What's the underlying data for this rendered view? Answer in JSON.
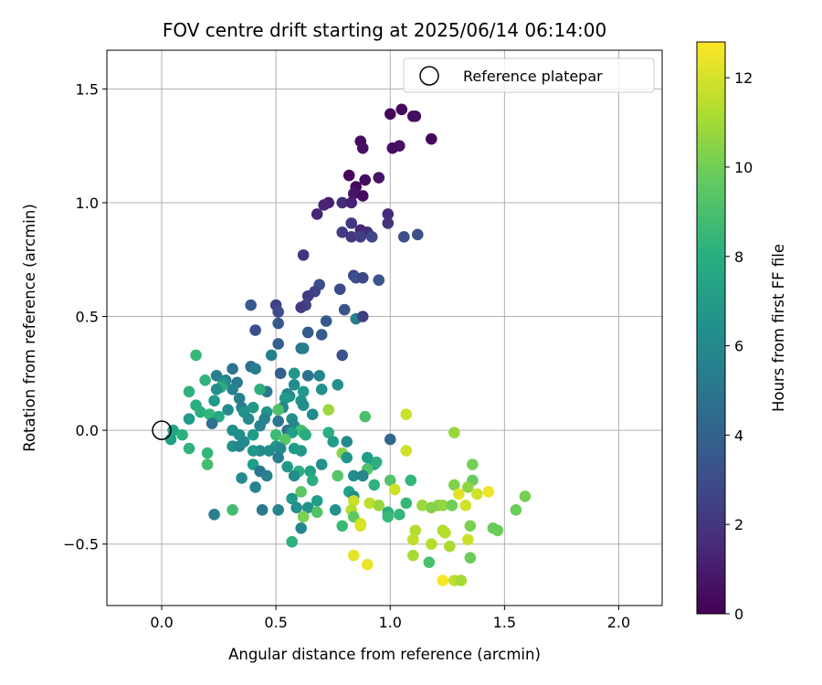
{
  "chart_data": {
    "type": "scatter",
    "title": "FOV centre drift starting at 2025/06/14 06:14:00",
    "xlabel": "Angular distance from reference (arcmin)",
    "ylabel": "Rotation from reference (arcmin)",
    "xlim": [
      -0.24,
      2.19
    ],
    "ylim": [
      -0.77,
      1.67
    ],
    "xticks": [
      "0.0",
      "0.5",
      "1.0",
      "1.5",
      "2.0"
    ],
    "yticks": [
      "−0.5",
      "0.0",
      "0.5",
      "1.0",
      "1.5"
    ],
    "xtick_values": [
      0.0,
      0.5,
      1.0,
      1.5,
      2.0
    ],
    "ytick_values": [
      -0.5,
      0.0,
      0.5,
      1.0,
      1.5
    ],
    "grid": true,
    "legend": {
      "placement": "top-right",
      "entries": [
        "Reference platepar"
      ]
    },
    "reference_point": {
      "x": 0.0,
      "y": 0.0,
      "name": "Reference platepar"
    },
    "colorbar": {
      "label": "Hours from first FF file",
      "colormap": "viridis",
      "range": [
        0,
        12.8
      ],
      "ticks": [
        "0",
        "2",
        "4",
        "6",
        "8",
        "10",
        "12"
      ],
      "tick_values": [
        0,
        2,
        4,
        6,
        8,
        10,
        12
      ]
    },
    "points": [
      [
        1.0,
        1.39,
        0.2
      ],
      [
        1.05,
        1.41,
        0.3
      ],
      [
        1.1,
        1.38,
        0.4
      ],
      [
        1.11,
        1.38,
        0.5
      ],
      [
        1.18,
        1.28,
        0.3
      ],
      [
        1.01,
        1.24,
        0.5
      ],
      [
        1.04,
        1.25,
        0.6
      ],
      [
        0.87,
        1.27,
        0.4
      ],
      [
        0.88,
        1.24,
        0.6
      ],
      [
        0.82,
        1.12,
        0.2
      ],
      [
        0.89,
        1.1,
        0.5
      ],
      [
        0.95,
        1.11,
        0.7
      ],
      [
        0.85,
        1.07,
        0.3
      ],
      [
        0.84,
        1.04,
        0.8
      ],
      [
        0.88,
        1.03,
        0.4
      ],
      [
        0.73,
        1.0,
        1.1
      ],
      [
        0.71,
        0.99,
        1.3
      ],
      [
        0.79,
        1.0,
        1.6
      ],
      [
        0.83,
        1.0,
        1.2
      ],
      [
        0.68,
        0.95,
        1.3
      ],
      [
        0.99,
        0.95,
        1.5
      ],
      [
        0.99,
        0.91,
        1.9
      ],
      [
        0.83,
        0.91,
        2.1
      ],
      [
        0.87,
        0.88,
        1.4
      ],
      [
        0.9,
        0.87,
        1.6
      ],
      [
        0.79,
        0.87,
        2.3
      ],
      [
        0.83,
        0.85,
        2.0
      ],
      [
        0.87,
        0.85,
        2.4
      ],
      [
        0.92,
        0.85,
        2.7
      ],
      [
        1.06,
        0.85,
        3.1
      ],
      [
        1.12,
        0.86,
        3.3
      ],
      [
        0.62,
        0.77,
        1.9
      ],
      [
        0.84,
        0.68,
        2.8
      ],
      [
        0.85,
        0.67,
        3.1
      ],
      [
        0.88,
        0.67,
        2.7
      ],
      [
        0.95,
        0.66,
        3.4
      ],
      [
        0.69,
        0.64,
        3.1
      ],
      [
        0.67,
        0.61,
        2.6
      ],
      [
        0.78,
        0.62,
        2.9
      ],
      [
        0.64,
        0.59,
        2.3
      ],
      [
        0.63,
        0.55,
        2.7
      ],
      [
        0.61,
        0.54,
        2.2
      ],
      [
        0.5,
        0.55,
        2.5
      ],
      [
        0.39,
        0.55,
        3.6
      ],
      [
        0.51,
        0.52,
        3.0
      ],
      [
        0.8,
        0.53,
        3.3
      ],
      [
        0.85,
        0.49,
        5.5
      ],
      [
        0.88,
        0.5,
        2.4
      ],
      [
        0.72,
        0.48,
        3.6
      ],
      [
        0.51,
        0.47,
        3.6
      ],
      [
        0.41,
        0.44,
        3.1
      ],
      [
        0.64,
        0.43,
        3.7
      ],
      [
        0.7,
        0.42,
        3.7
      ],
      [
        0.51,
        0.38,
        3.9
      ],
      [
        0.61,
        0.36,
        4.9
      ],
      [
        0.62,
        0.36,
        5.3
      ],
      [
        0.79,
        0.33,
        3.3
      ],
      [
        0.48,
        0.33,
        5.6
      ],
      [
        0.15,
        0.33,
        8.6
      ],
      [
        0.39,
        0.28,
        4.7
      ],
      [
        0.41,
        0.27,
        5.4
      ],
      [
        0.31,
        0.27,
        4.9
      ],
      [
        0.52,
        0.25,
        3.9
      ],
      [
        0.58,
        0.25,
        6.7
      ],
      [
        0.69,
        0.24,
        5.8
      ],
      [
        0.64,
        0.24,
        4.8
      ],
      [
        0.24,
        0.24,
        5.4
      ],
      [
        0.28,
        0.22,
        5.6
      ],
      [
        0.27,
        0.21,
        6.4
      ],
      [
        0.19,
        0.22,
        8.3
      ],
      [
        0.33,
        0.21,
        5.2
      ],
      [
        0.58,
        0.2,
        6.2
      ],
      [
        0.77,
        0.2,
        6.3
      ],
      [
        0.26,
        0.19,
        7.9
      ],
      [
        0.24,
        0.18,
        6.4
      ],
      [
        0.7,
        0.18,
        6.4
      ],
      [
        0.31,
        0.18,
        5.7
      ],
      [
        0.46,
        0.17,
        5.2
      ],
      [
        0.43,
        0.18,
        8.1
      ],
      [
        0.62,
        0.17,
        6.9
      ],
      [
        0.55,
        0.16,
        5.7
      ],
      [
        0.56,
        0.15,
        6.3
      ],
      [
        0.54,
        0.14,
        6.9
      ],
      [
        0.12,
        0.17,
        8.2
      ],
      [
        0.23,
        0.13,
        6.9
      ],
      [
        0.34,
        0.14,
        5.6
      ],
      [
        0.61,
        0.13,
        6.7
      ],
      [
        0.62,
        0.11,
        6.3
      ],
      [
        0.4,
        0.1,
        6.8
      ],
      [
        0.35,
        0.1,
        5.4
      ],
      [
        0.53,
        0.1,
        6.0
      ],
      [
        0.15,
        0.11,
        7.9
      ],
      [
        0.29,
        0.09,
        6.1
      ],
      [
        0.17,
        0.08,
        8.0
      ],
      [
        0.36,
        0.08,
        6.5
      ],
      [
        0.46,
        0.08,
        6.6
      ],
      [
        0.51,
        0.09,
        9.2
      ],
      [
        0.21,
        0.07,
        8.5
      ],
      [
        0.25,
        0.06,
        7.6
      ],
      [
        0.66,
        0.07,
        6.2
      ],
      [
        0.73,
        0.09,
        10.9
      ],
      [
        0.12,
        0.05,
        6.9
      ],
      [
        0.38,
        0.05,
        6.1
      ],
      [
        0.45,
        0.05,
        5.7
      ],
      [
        0.57,
        0.05,
        6.3
      ],
      [
        0.51,
        0.04,
        5.0
      ],
      [
        0.22,
        0.03,
        4.7
      ],
      [
        0.43,
        0.02,
        5.7
      ],
      [
        0.58,
        0.02,
        5.9
      ],
      [
        0.55,
        0.0,
        4.7
      ],
      [
        0.61,
        0.0,
        9.1
      ],
      [
        0.31,
        0.0,
        6.3
      ],
      [
        0.73,
        -0.01,
        8.0
      ],
      [
        0.57,
        -0.01,
        7.2
      ],
      [
        0.05,
        0.0,
        7.4
      ],
      [
        0.09,
        -0.02,
        8.1
      ],
      [
        0.34,
        -0.02,
        6.2
      ],
      [
        0.4,
        -0.02,
        7.0
      ],
      [
        0.89,
        0.06,
        9.1
      ],
      [
        1.07,
        0.07,
        11.8
      ],
      [
        0.62,
        -0.01,
        8.8
      ],
      [
        0.63,
        -0.02,
        7.8
      ],
      [
        0.5,
        -0.02,
        8.7
      ],
      [
        0.04,
        -0.04,
        7.3
      ],
      [
        0.54,
        -0.04,
        9.4
      ],
      [
        0.75,
        -0.05,
        7.1
      ],
      [
        0.81,
        -0.05,
        6.0
      ],
      [
        1.0,
        -0.04,
        4.2
      ],
      [
        1.28,
        -0.01,
        10.8
      ],
      [
        0.36,
        -0.05,
        6.1
      ],
      [
        0.31,
        -0.07,
        6.4
      ],
      [
        0.34,
        -0.07,
        5.9
      ],
      [
        0.5,
        -0.07,
        6.8
      ],
      [
        0.12,
        -0.08,
        8.2
      ],
      [
        0.43,
        -0.09,
        6.2
      ],
      [
        0.47,
        -0.09,
        6.2
      ],
      [
        0.52,
        -0.08,
        6.0
      ],
      [
        0.58,
        -0.08,
        6.9
      ],
      [
        0.61,
        -0.09,
        6.8
      ],
      [
        0.4,
        -0.09,
        6.8
      ],
      [
        0.2,
        -0.1,
        8.4
      ],
      [
        0.79,
        -0.1,
        10.5
      ],
      [
        0.81,
        -0.12,
        6.6
      ],
      [
        1.07,
        -0.09,
        11.9
      ],
      [
        0.9,
        -0.12,
        7.1
      ],
      [
        0.51,
        -0.12,
        5.4
      ],
      [
        0.2,
        -0.15,
        8.9
      ],
      [
        0.4,
        -0.15,
        7.1
      ],
      [
        0.55,
        -0.16,
        6.8
      ],
      [
        0.7,
        -0.15,
        6.4
      ],
      [
        0.93,
        -0.15,
        7.3
      ],
      [
        0.94,
        -0.14,
        8.0
      ],
      [
        1.36,
        -0.15,
        10.1
      ],
      [
        0.9,
        -0.17,
        9.2
      ],
      [
        0.6,
        -0.18,
        8.0
      ],
      [
        0.43,
        -0.18,
        5.1
      ],
      [
        0.65,
        -0.18,
        7.4
      ],
      [
        0.58,
        -0.2,
        6.3
      ],
      [
        0.46,
        -0.2,
        5.6
      ],
      [
        0.35,
        -0.21,
        6.1
      ],
      [
        0.84,
        -0.2,
        6.2
      ],
      [
        0.88,
        -0.2,
        5.9
      ],
      [
        0.77,
        -0.2,
        9.4
      ],
      [
        0.66,
        -0.22,
        7.9
      ],
      [
        1.0,
        -0.22,
        9.3
      ],
      [
        1.09,
        -0.22,
        8.4
      ],
      [
        1.28,
        -0.24,
        10.3
      ],
      [
        1.36,
        -0.22,
        9.8
      ],
      [
        1.34,
        -0.25,
        10.6
      ],
      [
        0.93,
        -0.24,
        8.2
      ],
      [
        0.41,
        -0.25,
        5.8
      ],
      [
        0.61,
        -0.27,
        9.6
      ],
      [
        0.82,
        -0.27,
        7.4
      ],
      [
        0.84,
        -0.29,
        6.2
      ],
      [
        1.02,
        -0.26,
        11.9
      ],
      [
        1.3,
        -0.28,
        12.3
      ],
      [
        1.38,
        -0.28,
        11.9
      ],
      [
        1.43,
        -0.27,
        12.5
      ],
      [
        1.59,
        -0.29,
        10.1
      ],
      [
        0.57,
        -0.3,
        6.8
      ],
      [
        0.68,
        -0.31,
        7.2
      ],
      [
        0.84,
        -0.31,
        11.8
      ],
      [
        0.91,
        -0.32,
        11.6
      ],
      [
        0.95,
        -0.33,
        10.8
      ],
      [
        1.07,
        -0.32,
        8.5
      ],
      [
        1.14,
        -0.33,
        10.9
      ],
      [
        1.21,
        -0.33,
        10.5
      ],
      [
        1.18,
        -0.34,
        10.4
      ],
      [
        1.23,
        -0.33,
        10.7
      ],
      [
        1.27,
        -0.33,
        10.0
      ],
      [
        1.33,
        -0.33,
        12.0
      ],
      [
        1.55,
        -0.35,
        9.9
      ],
      [
        0.44,
        -0.35,
        5.2
      ],
      [
        0.51,
        -0.35,
        5.8
      ],
      [
        0.59,
        -0.34,
        6.3
      ],
      [
        0.64,
        -0.34,
        6.5
      ],
      [
        0.76,
        -0.35,
        6.6
      ],
      [
        0.68,
        -0.36,
        9.3
      ],
      [
        0.31,
        -0.35,
        8.9
      ],
      [
        0.83,
        -0.35,
        11.4
      ],
      [
        0.99,
        -0.36,
        8.0
      ],
      [
        1.04,
        -0.37,
        8.4
      ],
      [
        0.99,
        -0.38,
        8.6
      ],
      [
        0.23,
        -0.37,
        5.6
      ],
      [
        0.62,
        -0.38,
        10.2
      ],
      [
        0.84,
        -0.38,
        9.6
      ],
      [
        0.87,
        -0.41,
        11.9
      ],
      [
        0.87,
        -0.42,
        12.1
      ],
      [
        0.79,
        -0.42,
        8.7
      ],
      [
        0.61,
        -0.43,
        5.9
      ],
      [
        1.11,
        -0.44,
        11.3
      ],
      [
        1.23,
        -0.44,
        11.3
      ],
      [
        1.24,
        -0.45,
        11.4
      ],
      [
        1.35,
        -0.42,
        10.2
      ],
      [
        1.45,
        -0.43,
        9.8
      ],
      [
        1.47,
        -0.44,
        9.9
      ],
      [
        1.1,
        -0.48,
        11.6
      ],
      [
        1.18,
        -0.5,
        11.4
      ],
      [
        1.34,
        -0.48,
        11.8
      ],
      [
        1.35,
        -0.56,
        9.9
      ],
      [
        1.26,
        -0.51,
        11.2
      ],
      [
        0.57,
        -0.49,
        8.2
      ],
      [
        1.1,
        -0.55,
        11.1
      ],
      [
        1.17,
        -0.58,
        9.1
      ],
      [
        0.84,
        -0.55,
        12.3
      ],
      [
        0.9,
        -0.59,
        12.4
      ],
      [
        1.23,
        -0.66,
        12.7
      ],
      [
        1.28,
        -0.66,
        11.6
      ],
      [
        1.31,
        -0.66,
        11.1
      ]
    ]
  }
}
